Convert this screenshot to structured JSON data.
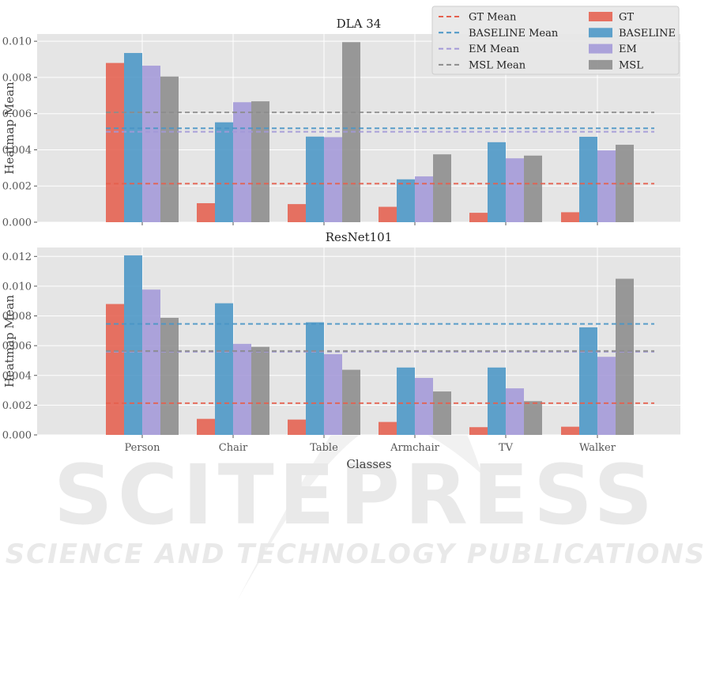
{
  "watermark": {
    "main": "SCITEPRESS",
    "sub": "SCIENCE AND TECHNOLOGY PUBLICATIONS"
  },
  "colors": {
    "GT": "#e5604e",
    "BASELINE": "#4a96c6",
    "EM": "#a399d8",
    "MSL": "#8c8c8c",
    "plot_bg": "#e5e5e5",
    "grid": "#ffffff"
  },
  "legend": {
    "placement": "top-right",
    "entries": [
      {
        "label": "GT Mean",
        "kind": "line",
        "series": "GT"
      },
      {
        "label": "BASELINE Mean",
        "kind": "line",
        "series": "BASELINE"
      },
      {
        "label": "EM Mean",
        "kind": "line",
        "series": "EM"
      },
      {
        "label": "MSL Mean",
        "kind": "line",
        "series": "MSL"
      },
      {
        "label": "GT",
        "kind": "bar",
        "series": "GT"
      },
      {
        "label": "BASELINE",
        "kind": "bar",
        "series": "BASELINE"
      },
      {
        "label": "EM",
        "kind": "bar",
        "series": "EM"
      },
      {
        "label": "MSL",
        "kind": "bar",
        "series": "MSL"
      }
    ]
  },
  "chart_data": [
    {
      "type": "bar",
      "title": "DLA 34",
      "xlabel": "",
      "ylabel": "Heatmap Mean",
      "categories": [
        "Person",
        "Chair",
        "Table",
        "Armchair",
        "TV",
        "Walker"
      ],
      "show_tick_labels": false,
      "ylim": [
        0,
        0.0104
      ],
      "yticks": [
        "0.000",
        "0.002",
        "0.004",
        "0.006",
        "0.008",
        "0.010"
      ],
      "grid": true,
      "series": [
        {
          "name": "GT",
          "values": [
            0.0088,
            0.00105,
            0.001,
            0.00085,
            0.00052,
            0.00055
          ],
          "mean": 0.00213
        },
        {
          "name": "BASELINE",
          "values": [
            0.00935,
            0.00552,
            0.00473,
            0.00237,
            0.00442,
            0.00472
          ],
          "mean": 0.00519
        },
        {
          "name": "EM",
          "values": [
            0.00865,
            0.00663,
            0.0047,
            0.00253,
            0.00353,
            0.00397
          ],
          "mean": 0.005
        },
        {
          "name": "MSL",
          "values": [
            0.00805,
            0.00668,
            0.00995,
            0.00375,
            0.00368,
            0.00428
          ],
          "mean": 0.00607
        }
      ]
    },
    {
      "type": "bar",
      "title": "ResNet101",
      "xlabel": "Classes",
      "ylabel": "Heatmap Mean",
      "categories": [
        "Person",
        "Chair",
        "Table",
        "Armchair",
        "TV",
        "Walker"
      ],
      "show_tick_labels": true,
      "ylim": [
        0,
        0.0126
      ],
      "yticks": [
        "0.000",
        "0.002",
        "0.004",
        "0.006",
        "0.008",
        "0.010",
        "0.012"
      ],
      "grid": true,
      "series": [
        {
          "name": "GT",
          "values": [
            0.0088,
            0.00108,
            0.00103,
            0.00087,
            0.00052,
            0.00055
          ],
          "mean": 0.00213
        },
        {
          "name": "BASELINE",
          "values": [
            0.01207,
            0.00885,
            0.00757,
            0.00453,
            0.00453,
            0.00723
          ],
          "mean": 0.00746
        },
        {
          "name": "EM",
          "values": [
            0.00977,
            0.00612,
            0.00543,
            0.00383,
            0.00313,
            0.00525
          ],
          "mean": 0.00559
        },
        {
          "name": "MSL",
          "values": [
            0.00787,
            0.00592,
            0.00438,
            0.00292,
            0.00227,
            0.0105
          ],
          "mean": 0.00564
        }
      ]
    }
  ]
}
